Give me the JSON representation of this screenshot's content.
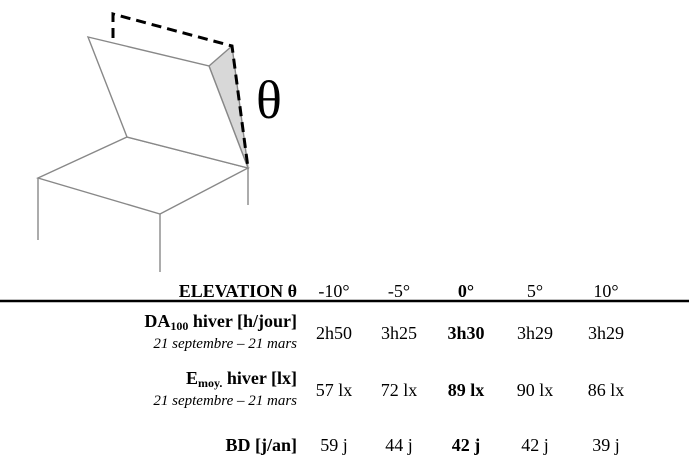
{
  "figure": {
    "angle_symbol": "θ"
  },
  "table": {
    "header": {
      "label": "ELEVATION θ",
      "columns": [
        "-10°",
        "-5°",
        "0°",
        "5°",
        "10°"
      ]
    },
    "rows": [
      {
        "label": {
          "main": "DA",
          "sub": "100",
          "rest": " hiver [h/jour]"
        },
        "period": "21 septembre – 21 mars",
        "cells": [
          "2h50",
          "3h25",
          "3h30",
          "3h29",
          "3h29"
        ]
      },
      {
        "label": {
          "main": "E",
          "sub": "moy.",
          "rest": " hiver [lx]"
        },
        "period": "21 septembre – 21 mars",
        "cells": [
          "57 lx",
          "72 lx",
          "89 lx",
          "90 lx",
          "86 lx"
        ]
      },
      {
        "label": {
          "main": "BD [j/an]"
        },
        "cells": [
          "59 j",
          "44 j",
          "42 j",
          "42 j",
          "39 j"
        ]
      }
    ],
    "highlight_column": 2
  }
}
